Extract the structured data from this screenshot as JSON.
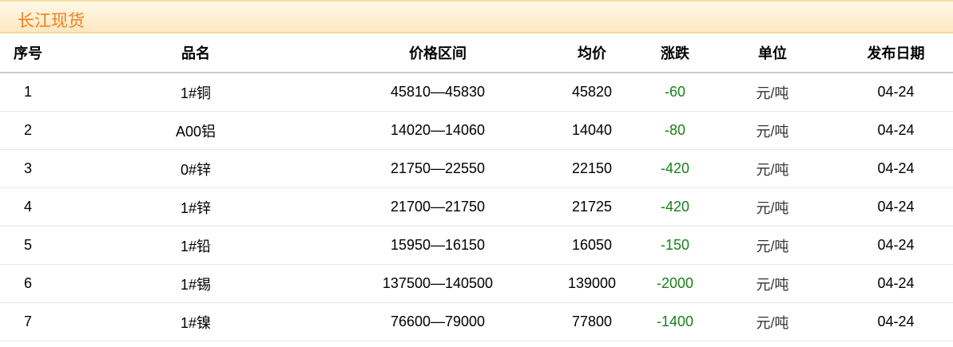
{
  "title": "长江现货",
  "colors": {
    "title": "#f07f1e",
    "change_down": "#1a7f1a"
  },
  "columns": [
    "序号",
    "品名",
    "价格区间",
    "均价",
    "涨跌",
    "单位",
    "发布日期"
  ],
  "rows": [
    {
      "no": "1",
      "name": "1#铜",
      "range": "45810—45830",
      "avg": "45820",
      "change": "-60",
      "unit": "元/吨",
      "date": "04-24"
    },
    {
      "no": "2",
      "name": "A00铝",
      "range": "14020—14060",
      "avg": "14040",
      "change": "-80",
      "unit": "元/吨",
      "date": "04-24"
    },
    {
      "no": "3",
      "name": "0#锌",
      "range": "21750—22550",
      "avg": "22150",
      "change": "-420",
      "unit": "元/吨",
      "date": "04-24"
    },
    {
      "no": "4",
      "name": "1#锌",
      "range": "21700—21750",
      "avg": "21725",
      "change": "-420",
      "unit": "元/吨",
      "date": "04-24"
    },
    {
      "no": "5",
      "name": "1#铅",
      "range": "15950—16150",
      "avg": "16050",
      "change": "-150",
      "unit": "元/吨",
      "date": "04-24"
    },
    {
      "no": "6",
      "name": "1#锡",
      "range": "137500—140500",
      "avg": "139000",
      "change": "-2000",
      "unit": "元/吨",
      "date": "04-24"
    },
    {
      "no": "7",
      "name": "1#镍",
      "range": "76600—79000",
      "avg": "77800",
      "change": "-1400",
      "unit": "元/吨",
      "date": "04-24"
    }
  ]
}
